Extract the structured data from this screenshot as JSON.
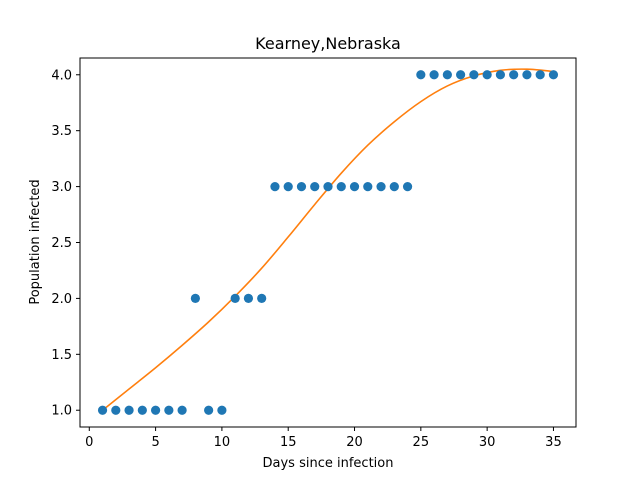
{
  "chart_data": {
    "type": "scatter",
    "title": "Kearney,Nebraska",
    "xlabel": "Days since infection",
    "ylabel": "Population infected",
    "xlim": [
      -0.7,
      36.7
    ],
    "ylim": [
      0.85,
      4.15
    ],
    "xticks": [
      0,
      5,
      10,
      15,
      20,
      25,
      30,
      35
    ],
    "yticks": [
      1.0,
      1.5,
      2.0,
      2.5,
      3.0,
      3.5,
      4.0
    ],
    "xtick_labels": [
      "0",
      "5",
      "10",
      "15",
      "20",
      "25",
      "30",
      "35"
    ],
    "ytick_labels": [
      "1.0",
      "1.5",
      "2.0",
      "2.5",
      "3.0",
      "3.5",
      "4.0"
    ],
    "grid": false,
    "series": [
      {
        "kind": "scatter",
        "color": "#1f77b4",
        "x": [
          1,
          2,
          3,
          4,
          5,
          6,
          7,
          8,
          9,
          10,
          11,
          12,
          13,
          14,
          15,
          16,
          17,
          18,
          19,
          20,
          21,
          22,
          23,
          24,
          25,
          26,
          27,
          28,
          29,
          30,
          31,
          32,
          33,
          34,
          35
        ],
        "y": [
          1,
          1,
          1,
          1,
          1,
          1,
          1,
          2,
          1,
          1,
          2,
          2,
          2,
          3,
          3,
          3,
          3,
          3,
          3,
          3,
          3,
          3,
          3,
          3,
          4,
          4,
          4,
          4,
          4,
          4,
          4,
          4,
          4,
          4,
          4
        ]
      },
      {
        "kind": "line",
        "color": "#ff7f0e",
        "x": [
          1,
          3,
          5,
          7,
          9,
          11,
          13,
          15,
          17,
          19,
          21,
          23,
          25,
          27,
          29,
          31,
          33,
          35
        ],
        "y": [
          1.0,
          1.19,
          1.38,
          1.58,
          1.79,
          2.02,
          2.27,
          2.55,
          2.84,
          3.12,
          3.37,
          3.58,
          3.76,
          3.9,
          3.99,
          4.04,
          4.05,
          4.03
        ]
      }
    ]
  }
}
